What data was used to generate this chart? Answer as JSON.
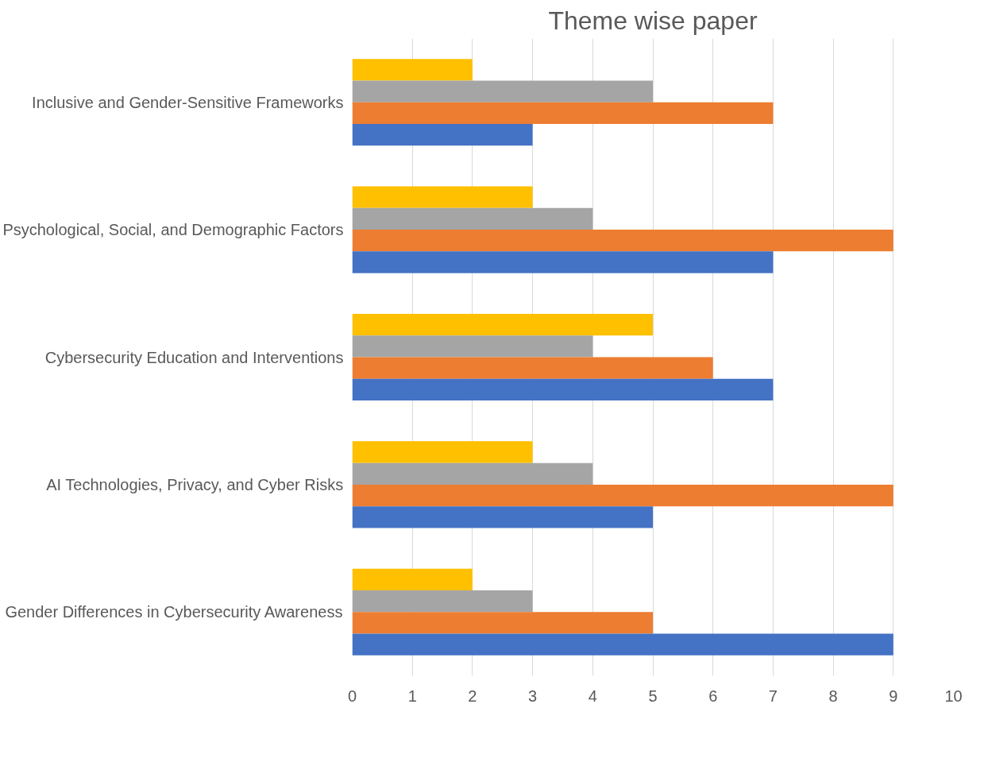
{
  "chart_data": {
    "type": "bar",
    "title": "Theme wise paper",
    "orientation": "horizontal",
    "categories": [
      "Inclusive and Gender-Sensitive Frameworks",
      "Psychological, Social, and Demographic Factors",
      "Cybersecurity Education and Interventions",
      "AI Technologies, Privacy, and Cyber Risks",
      "Gender Differences in Cybersecurity Awareness"
    ],
    "series": [
      {
        "color": "#ffc000",
        "values": [
          2,
          3,
          5,
          3,
          2
        ]
      },
      {
        "color": "#a5a5a5",
        "values": [
          5,
          4,
          4,
          4,
          3
        ]
      },
      {
        "color": "#ed7d31",
        "values": [
          7,
          9,
          6,
          9,
          5
        ]
      },
      {
        "color": "#4472c4",
        "values": [
          3,
          7,
          7,
          5,
          9
        ]
      }
    ],
    "xlim": [
      0,
      10
    ],
    "xticks": [
      0,
      1,
      2,
      3,
      4,
      5,
      6,
      7,
      8,
      9,
      10
    ],
    "grid": "x"
  }
}
